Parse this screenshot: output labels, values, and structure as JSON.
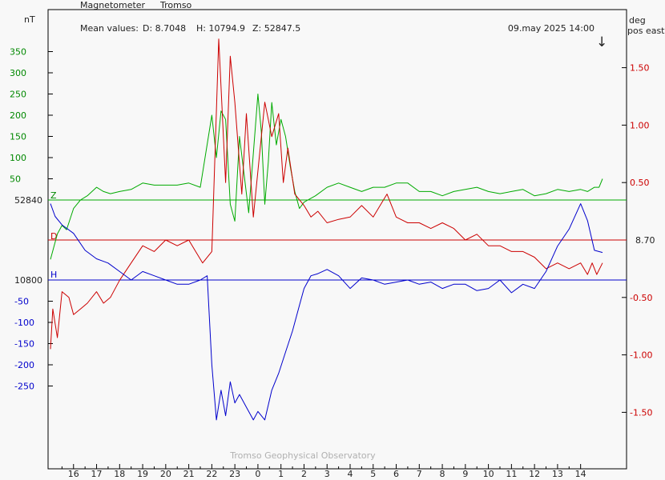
{
  "header": {
    "instrument": "Magnetometer",
    "station": "Tromso",
    "mean_values_label": "Mean values:",
    "mean_d": "D: 8.7048",
    "mean_h": "H: 10794.9",
    "mean_z": "Z: 52847.5",
    "timestamp": "09.may 2025 14:00",
    "left_unit": "nT",
    "right_unit_1": "deg",
    "right_unit_2": "pos east",
    "arrow_glyph": "↓"
  },
  "footer": {
    "credit": "Tromso Geophysical Observatory"
  },
  "colors": {
    "z": "#00aa00",
    "d": "#cc0000",
    "h": "#0000cc",
    "frame": "#000000",
    "background": "#f8f8f8"
  },
  "chart_data": {
    "type": "line",
    "xlabel": "",
    "x_range_hours": [
      15.0,
      38.95
    ],
    "x_tick_labels": [
      "16",
      "17",
      "18",
      "19",
      "20",
      "21",
      "22",
      "23",
      "0",
      "1",
      "2",
      "3",
      "4",
      "5",
      "6",
      "7",
      "8",
      "9",
      "10",
      "11",
      "12",
      "13",
      "14"
    ],
    "baselines": {
      "z_label": "52840",
      "h_label": "10800",
      "d_label": "8.70",
      "z_letter": "Z",
      "d_letter": "D",
      "h_letter": "H"
    },
    "left_axis_z": {
      "ticks": [
        50,
        100,
        150,
        200,
        250,
        300,
        350
      ],
      "labels": [
        "50",
        "100",
        "150",
        "200",
        "250",
        "300",
        "350"
      ]
    },
    "left_axis_h": {
      "ticks": [
        -50,
        -100,
        -150,
        -200,
        -250
      ],
      "labels": [
        "-50",
        "-100",
        "-150",
        "-200",
        "-250"
      ]
    },
    "right_axis_d": {
      "ticks": [
        1.5,
        1.0,
        0.5,
        -0.5,
        -1.0,
        -1.5
      ],
      "labels": [
        "1.50",
        "1.00",
        "0.50",
        "-0.50",
        "-1.00",
        "-1.50"
      ]
    },
    "series": [
      {
        "key": "z",
        "unit": "nT offset from 52840",
        "x": [
          15.0,
          15.3,
          15.5,
          15.7,
          16.0,
          16.3,
          16.6,
          17.0,
          17.3,
          17.6,
          18.0,
          18.5,
          19.0,
          19.5,
          20.0,
          20.5,
          21.0,
          21.5,
          22.0,
          22.2,
          22.4,
          22.6,
          22.8,
          23.0,
          23.2,
          23.4,
          23.6,
          23.8,
          24.0,
          24.15,
          24.3,
          24.45,
          24.6,
          24.8,
          25.0,
          25.2,
          25.4,
          25.6,
          25.8,
          26.0,
          26.5,
          27.0,
          27.5,
          28.0,
          28.5,
          29.0,
          29.5,
          30.0,
          30.5,
          31.0,
          31.5,
          32.0,
          32.5,
          33.0,
          33.5,
          34.0,
          34.5,
          35.0,
          35.5,
          36.0,
          36.5,
          37.0,
          37.5,
          38.0,
          38.3,
          38.6,
          38.8,
          38.95
        ],
        "y": [
          -140,
          -80,
          -60,
          -70,
          -20,
          0,
          10,
          30,
          20,
          15,
          20,
          25,
          40,
          35,
          35,
          35,
          40,
          30,
          200,
          100,
          210,
          190,
          -10,
          -50,
          150,
          60,
          -30,
          110,
          250,
          160,
          -10,
          90,
          230,
          130,
          190,
          150,
          80,
          20,
          -20,
          -5,
          10,
          30,
          40,
          30,
          20,
          30,
          30,
          40,
          40,
          20,
          20,
          10,
          20,
          25,
          30,
          20,
          15,
          20,
          25,
          10,
          15,
          25,
          20,
          25,
          20,
          30,
          30,
          50
        ]
      },
      {
        "key": "d",
        "unit": "deg offset from 8.70",
        "x": [
          15.0,
          15.1,
          15.3,
          15.5,
          15.8,
          16.0,
          16.3,
          16.6,
          17.0,
          17.3,
          17.6,
          18.0,
          18.5,
          19.0,
          19.5,
          20.0,
          20.5,
          21.0,
          21.3,
          21.6,
          22.0,
          22.3,
          22.6,
          22.8,
          23.0,
          23.3,
          23.5,
          23.8,
          24.0,
          24.3,
          24.6,
          24.9,
          25.1,
          25.3,
          25.6,
          26.0,
          26.3,
          26.6,
          27.0,
          27.5,
          28.0,
          28.5,
          29.0,
          29.3,
          29.6,
          30.0,
          30.5,
          31.0,
          31.5,
          32.0,
          32.5,
          33.0,
          33.5,
          34.0,
          34.5,
          35.0,
          35.5,
          36.0,
          36.5,
          37.0,
          37.5,
          38.0,
          38.3,
          38.5,
          38.7,
          38.95
        ],
        "y": [
          -0.95,
          -0.6,
          -0.85,
          -0.45,
          -0.5,
          -0.65,
          -0.6,
          -0.55,
          -0.45,
          -0.55,
          -0.5,
          -0.35,
          -0.2,
          -0.05,
          -0.1,
          0.0,
          -0.05,
          0.0,
          -0.1,
          -0.2,
          -0.1,
          1.75,
          0.5,
          1.6,
          1.2,
          0.4,
          1.1,
          0.2,
          0.6,
          1.2,
          0.9,
          1.1,
          0.5,
          0.8,
          0.4,
          0.3,
          0.2,
          0.25,
          0.15,
          0.18,
          0.2,
          0.3,
          0.2,
          0.3,
          0.4,
          0.2,
          0.15,
          0.15,
          0.1,
          0.15,
          0.1,
          0.0,
          0.05,
          -0.05,
          -0.05,
          -0.1,
          -0.1,
          -0.15,
          -0.25,
          -0.2,
          -0.25,
          -0.2,
          -0.3,
          -0.2,
          -0.3,
          -0.2
        ]
      },
      {
        "key": "h",
        "unit": "nT offset from 10800",
        "x": [
          15.0,
          15.2,
          15.5,
          16.0,
          16.5,
          17.0,
          17.5,
          18.0,
          18.5,
          19.0,
          19.5,
          20.0,
          20.5,
          21.0,
          21.5,
          21.8,
          22.0,
          22.2,
          22.4,
          22.6,
          22.8,
          23.0,
          23.2,
          23.5,
          23.8,
          24.0,
          24.3,
          24.6,
          24.9,
          25.2,
          25.5,
          25.8,
          26.0,
          26.3,
          26.6,
          27.0,
          27.5,
          28.0,
          28.5,
          29.0,
          29.5,
          30.0,
          30.5,
          31.0,
          31.5,
          32.0,
          32.5,
          33.0,
          33.5,
          34.0,
          34.5,
          35.0,
          35.5,
          36.0,
          36.5,
          37.0,
          37.5,
          38.0,
          38.3,
          38.6,
          38.95
        ],
        "y": [
          180,
          150,
          130,
          110,
          70,
          50,
          40,
          20,
          0,
          20,
          10,
          0,
          -10,
          -10,
          0,
          10,
          -200,
          -330,
          -260,
          -320,
          -240,
          -290,
          -270,
          -300,
          -330,
          -310,
          -330,
          -260,
          -220,
          -170,
          -120,
          -60,
          -20,
          10,
          15,
          25,
          10,
          -20,
          5,
          0,
          -10,
          -5,
          0,
          -10,
          -5,
          -20,
          -10,
          -10,
          -25,
          -20,
          0,
          -30,
          -10,
          -20,
          20,
          80,
          120,
          180,
          140,
          70,
          65
        ]
      }
    ]
  }
}
